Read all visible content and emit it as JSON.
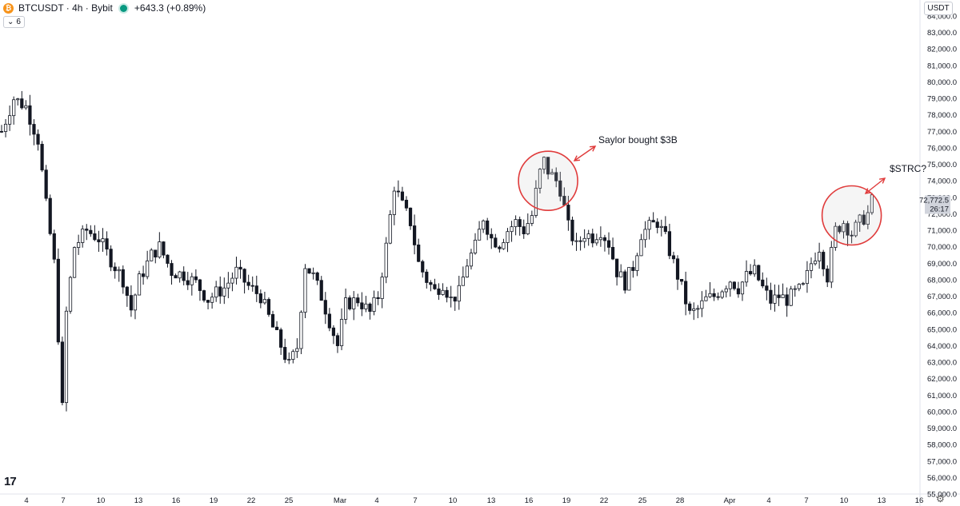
{
  "legend": {
    "symbol": "BTCUSDT · 4h · Bybit",
    "change": "+643.3 (+0.89%)",
    "coin_glyph": "₿",
    "status_color": "#089981"
  },
  "indicator_toggle": {
    "chevron": "⌄",
    "count": "6"
  },
  "price_scale": {
    "currency": "USDT"
  },
  "branding": {
    "logo": "17"
  },
  "chart_data": {
    "type": "candlestick",
    "title": "",
    "y_ticks": [
      "55,000.0",
      "56,000.0",
      "57,000.0",
      "58,000.0",
      "59,000.0",
      "60,000.0",
      "61,000.0",
      "62,000.0",
      "63,000.0",
      "64,000.0",
      "65,000.0",
      "66,000.0",
      "67,000.0",
      "68,000.0",
      "69,000.0",
      "70,000.0",
      "71,000.0",
      "72,000.0",
      "73,000.0",
      "74,000.0",
      "75,000.0",
      "76,000.0",
      "77,000.0",
      "78,000.0",
      "79,000.0",
      "80,000.0",
      "81,000.0",
      "82,000.0",
      "83,000.0",
      "84,000.0"
    ],
    "ylim": [
      55000,
      84000
    ],
    "x_labels": [
      "4",
      "7",
      "10",
      "13",
      "16",
      "19",
      "22",
      "25",
      "Mar",
      "4",
      "7",
      "10",
      "13",
      "16",
      "19",
      "22",
      "25",
      "28",
      "Apr",
      "4",
      "7",
      "10",
      "13",
      "16"
    ],
    "series_path": [
      [
        0,
        77000
      ],
      [
        3,
        79000
      ],
      [
        6,
        78500
      ],
      [
        9,
        76500
      ],
      [
        11,
        72500
      ],
      [
        13,
        69000
      ],
      [
        15,
        60200
      ],
      [
        16,
        66000
      ],
      [
        18,
        70000
      ],
      [
        21,
        71000
      ],
      [
        24,
        70500
      ],
      [
        27,
        69200
      ],
      [
        30,
        68000
      ],
      [
        32,
        66200
      ],
      [
        34,
        68000
      ],
      [
        37,
        69500
      ],
      [
        39,
        70000
      ],
      [
        42,
        68500
      ],
      [
        45,
        68300
      ],
      [
        48,
        67800
      ],
      [
        51,
        66800
      ],
      [
        53,
        67200
      ],
      [
        55,
        67500
      ],
      [
        58,
        68500
      ],
      [
        61,
        67600
      ],
      [
        64,
        67000
      ],
      [
        67,
        65100
      ],
      [
        69,
        64000
      ],
      [
        71,
        62800
      ],
      [
        73,
        63900
      ],
      [
        75,
        68900
      ],
      [
        77,
        68200
      ],
      [
        79,
        67000
      ],
      [
        81,
        65500
      ],
      [
        83,
        64000
      ],
      [
        85,
        66500
      ],
      [
        88,
        66800
      ],
      [
        91,
        66000
      ],
      [
        93,
        67000
      ],
      [
        95,
        70000
      ],
      [
        97,
        73700
      ],
      [
        99,
        72500
      ],
      [
        101,
        71500
      ],
      [
        103,
        69000
      ],
      [
        105,
        68000
      ],
      [
        107,
        67300
      ],
      [
        109,
        67800
      ],
      [
        111,
        66800
      ],
      [
        113,
        67200
      ],
      [
        115,
        69000
      ],
      [
        117,
        70000
      ],
      [
        119,
        71800
      ],
      [
        121,
        70500
      ],
      [
        123,
        70200
      ],
      [
        125,
        71000
      ],
      [
        127,
        71500
      ],
      [
        129,
        71000
      ],
      [
        131,
        71900
      ],
      [
        132,
        73300
      ],
      [
        133,
        74500
      ],
      [
        134,
        75200
      ],
      [
        135,
        74600
      ],
      [
        136,
        74300
      ],
      [
        137,
        74000
      ],
      [
        138,
        73500
      ],
      [
        140,
        71200
      ],
      [
        142,
        70000
      ],
      [
        144,
        70800
      ],
      [
        146,
        70600
      ],
      [
        148,
        71000
      ],
      [
        150,
        70200
      ],
      [
        152,
        68500
      ],
      [
        154,
        67800
      ],
      [
        156,
        68800
      ],
      [
        158,
        70800
      ],
      [
        160,
        71200
      ],
      [
        162,
        71500
      ],
      [
        164,
        70500
      ],
      [
        166,
        69000
      ],
      [
        168,
        67500
      ],
      [
        170,
        65900
      ],
      [
        172,
        66200
      ],
      [
        174,
        66800
      ],
      [
        176,
        67000
      ],
      [
        178,
        67500
      ],
      [
        180,
        68000
      ],
      [
        182,
        67500
      ],
      [
        184,
        68200
      ],
      [
        186,
        68500
      ],
      [
        188,
        67500
      ],
      [
        190,
        66700
      ],
      [
        192,
        67000
      ],
      [
        194,
        66800
      ],
      [
        196,
        67200
      ],
      [
        198,
        67500
      ],
      [
        200,
        69000
      ],
      [
        202,
        70000
      ],
      [
        204,
        68200
      ],
      [
        206,
        71000
      ],
      [
        208,
        71500
      ],
      [
        210,
        70800
      ],
      [
        212,
        71500
      ],
      [
        214,
        72000
      ],
      [
        215,
        72772.5
      ]
    ],
    "last_price": "72,772.5",
    "countdown": "26:17",
    "annotations": [
      {
        "text": "Saylor bought $3B"
      },
      {
        "text": "$STRC?"
      }
    ],
    "highlight_circles": [
      {
        "center_x_index": 135,
        "center_y": 74000
      },
      {
        "center_x_index": 210,
        "center_y": 71900
      }
    ],
    "colors": {
      "candle": "#131722",
      "circle": "#e03b3b",
      "arrow": "#e03b3b",
      "grid": "#f0f3fa",
      "price_tag": "#d1d4dc"
    }
  }
}
